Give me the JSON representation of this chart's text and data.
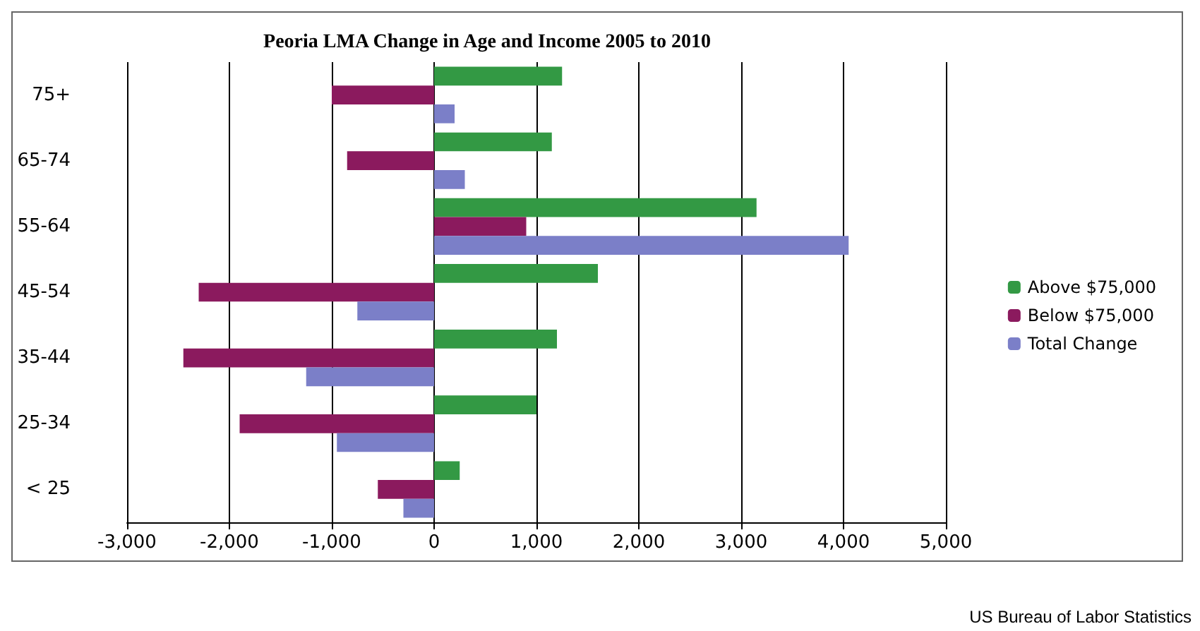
{
  "chart_data": {
    "type": "bar",
    "orientation": "horizontal",
    "title": "Peoria LMA Change in Age and Income 2005 to 2010",
    "categories": [
      "75+",
      "65-74",
      "55-64",
      "45-54",
      "35-44",
      "25-34",
      "< 25"
    ],
    "series": [
      {
        "name": "Above $75,000",
        "color": "#339944",
        "values": [
          1250,
          1150,
          3150,
          1600,
          1200,
          1000,
          250
        ]
      },
      {
        "name": "Below $75,000",
        "color": "#8b1a5e",
        "values": [
          -1000,
          -850,
          900,
          -2300,
          -2450,
          -1900,
          -550
        ]
      },
      {
        "name": "Total Change",
        "color": "#7b7fc8",
        "values": [
          200,
          300,
          4050,
          -750,
          -1250,
          -950,
          -300
        ]
      }
    ],
    "xlim": [
      -3000,
      5000
    ],
    "xticks": [
      {
        "value": -3000,
        "label": "-3,000"
      },
      {
        "value": -2000,
        "label": "-2,000"
      },
      {
        "value": -1000,
        "label": "-1,000"
      },
      0,
      {
        "value": 1000,
        "label": "1,000"
      },
      {
        "value": 2000,
        "label": "2,000"
      },
      {
        "value": 3000,
        "label": "3,000"
      },
      {
        "value": 4000,
        "label": "4,000"
      },
      {
        "value": 5000,
        "label": "5,000"
      }
    ],
    "grid": "x",
    "legend": "right",
    "annotations": [
      "US Bureau of Labor Statistics"
    ]
  }
}
